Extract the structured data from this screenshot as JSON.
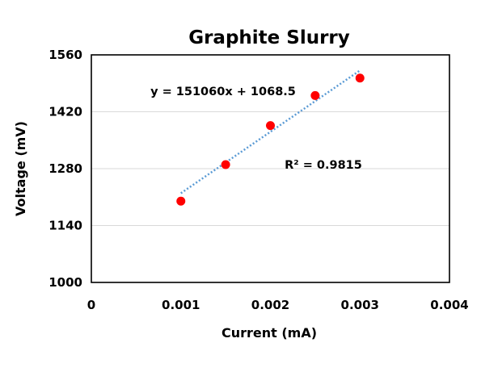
{
  "chart_data": {
    "type": "scatter",
    "title": "Graphite Slurry",
    "xlabel": "Current  (mA)",
    "ylabel": "Voltage  (mV)",
    "xlim": [
      0,
      0.004
    ],
    "ylim": [
      1000,
      1560
    ],
    "x_ticks": [
      "0",
      "0.001",
      "0.002",
      "0.003",
      "0.004"
    ],
    "y_ticks": [
      "1000",
      "1140",
      "1280",
      "1420",
      "1560"
    ],
    "grid": "horizontal",
    "legend": "none",
    "series": [
      {
        "points": [
          {
            "x": 0.001,
            "y": 1200
          },
          {
            "x": 0.0015,
            "y": 1290
          },
          {
            "x": 0.002,
            "y": 1386
          },
          {
            "x": 0.0025,
            "y": 1460
          },
          {
            "x": 0.003,
            "y": 1503
          }
        ],
        "color": "#ff0000"
      }
    ],
    "trendline": {
      "type": "linear",
      "slope": 151060,
      "intercept": 1068.5,
      "x_range": [
        0.001,
        0.003
      ],
      "color": "#5b9bd5",
      "style": "dotted"
    },
    "annotations": {
      "equation": "y = 151060x + 1068.5",
      "r_squared": "R² = 0.9815"
    }
  }
}
